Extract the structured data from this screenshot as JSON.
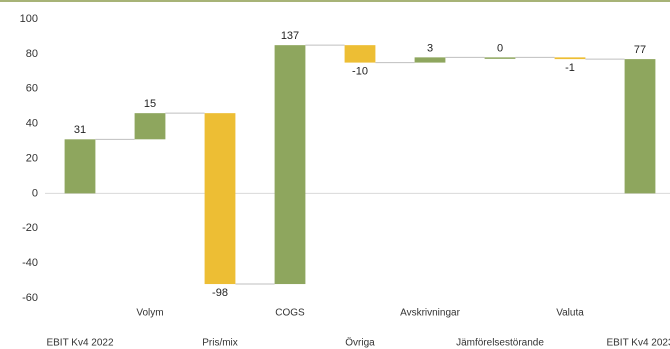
{
  "chart_data": {
    "type": "waterfall",
    "categories": [
      "EBIT Kv4 2022",
      "Volym",
      "Pris/mix",
      "COGS",
      "Övriga",
      "Avskrivningar",
      "Jämförelsestörande",
      "Valuta",
      "EBIT Kv4 2023"
    ],
    "values": [
      31,
      15,
      -98,
      137,
      -10,
      3,
      0,
      -1,
      77
    ],
    "increase_color": "#8ea65e",
    "decrease_color": "#edbe34",
    "total_color": "#8ea65e",
    "ylim": [
      -60,
      100
    ],
    "yticks": [
      -60,
      -40,
      -20,
      0,
      20,
      40,
      60,
      80,
      100
    ]
  }
}
